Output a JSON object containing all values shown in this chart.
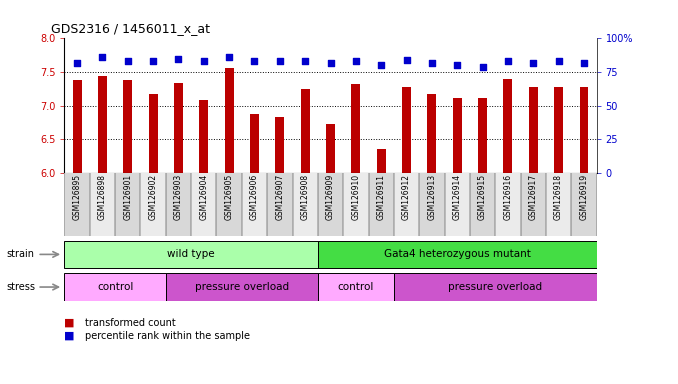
{
  "title": "GDS2316 / 1456011_x_at",
  "samples": [
    "GSM126895",
    "GSM126898",
    "GSM126901",
    "GSM126902",
    "GSM126903",
    "GSM126904",
    "GSM126905",
    "GSM126906",
    "GSM126907",
    "GSM126908",
    "GSM126909",
    "GSM126910",
    "GSM126911",
    "GSM126912",
    "GSM126913",
    "GSM126914",
    "GSM126915",
    "GSM126916",
    "GSM126917",
    "GSM126918",
    "GSM126919"
  ],
  "transformed_count": [
    7.38,
    7.44,
    7.38,
    7.18,
    7.33,
    7.09,
    7.56,
    6.88,
    6.83,
    7.25,
    6.72,
    7.32,
    6.36,
    7.27,
    7.18,
    7.12,
    7.12,
    7.39,
    7.27,
    7.27,
    7.27
  ],
  "percentile_rank": [
    82,
    86,
    83,
    83,
    85,
    83,
    86,
    83,
    83,
    83,
    82,
    83,
    80,
    84,
    82,
    80,
    79,
    83,
    82,
    83,
    82
  ],
  "ylim_left": [
    6.0,
    8.0
  ],
  "ylim_right": [
    0,
    100
  ],
  "yticks_left": [
    6.0,
    6.5,
    7.0,
    7.5,
    8.0
  ],
  "yticks_right": [
    0,
    25,
    50,
    75,
    100
  ],
  "bar_color": "#bb0000",
  "dot_color": "#0000cc",
  "background_color": "#ffffff",
  "strain_groups": [
    {
      "label": "wild type",
      "start": 0,
      "end": 10,
      "color": "#aaffaa"
    },
    {
      "label": "Gata4 heterozygous mutant",
      "start": 10,
      "end": 21,
      "color": "#44dd44"
    }
  ],
  "stress_groups": [
    {
      "label": "control",
      "start": 0,
      "end": 4,
      "color": "#ffaaff"
    },
    {
      "label": "pressure overload",
      "start": 4,
      "end": 10,
      "color": "#cc55cc"
    },
    {
      "label": "control",
      "start": 10,
      "end": 13,
      "color": "#ffaaff"
    },
    {
      "label": "pressure overload",
      "start": 13,
      "end": 21,
      "color": "#cc55cc"
    }
  ],
  "tick_color_left": "#cc0000",
  "tick_color_right": "#0000cc",
  "dotted_line_y": [
    6.5,
    7.0,
    7.5
  ],
  "n_samples": 21,
  "bar_width": 0.35,
  "right_axis_label": "100%"
}
